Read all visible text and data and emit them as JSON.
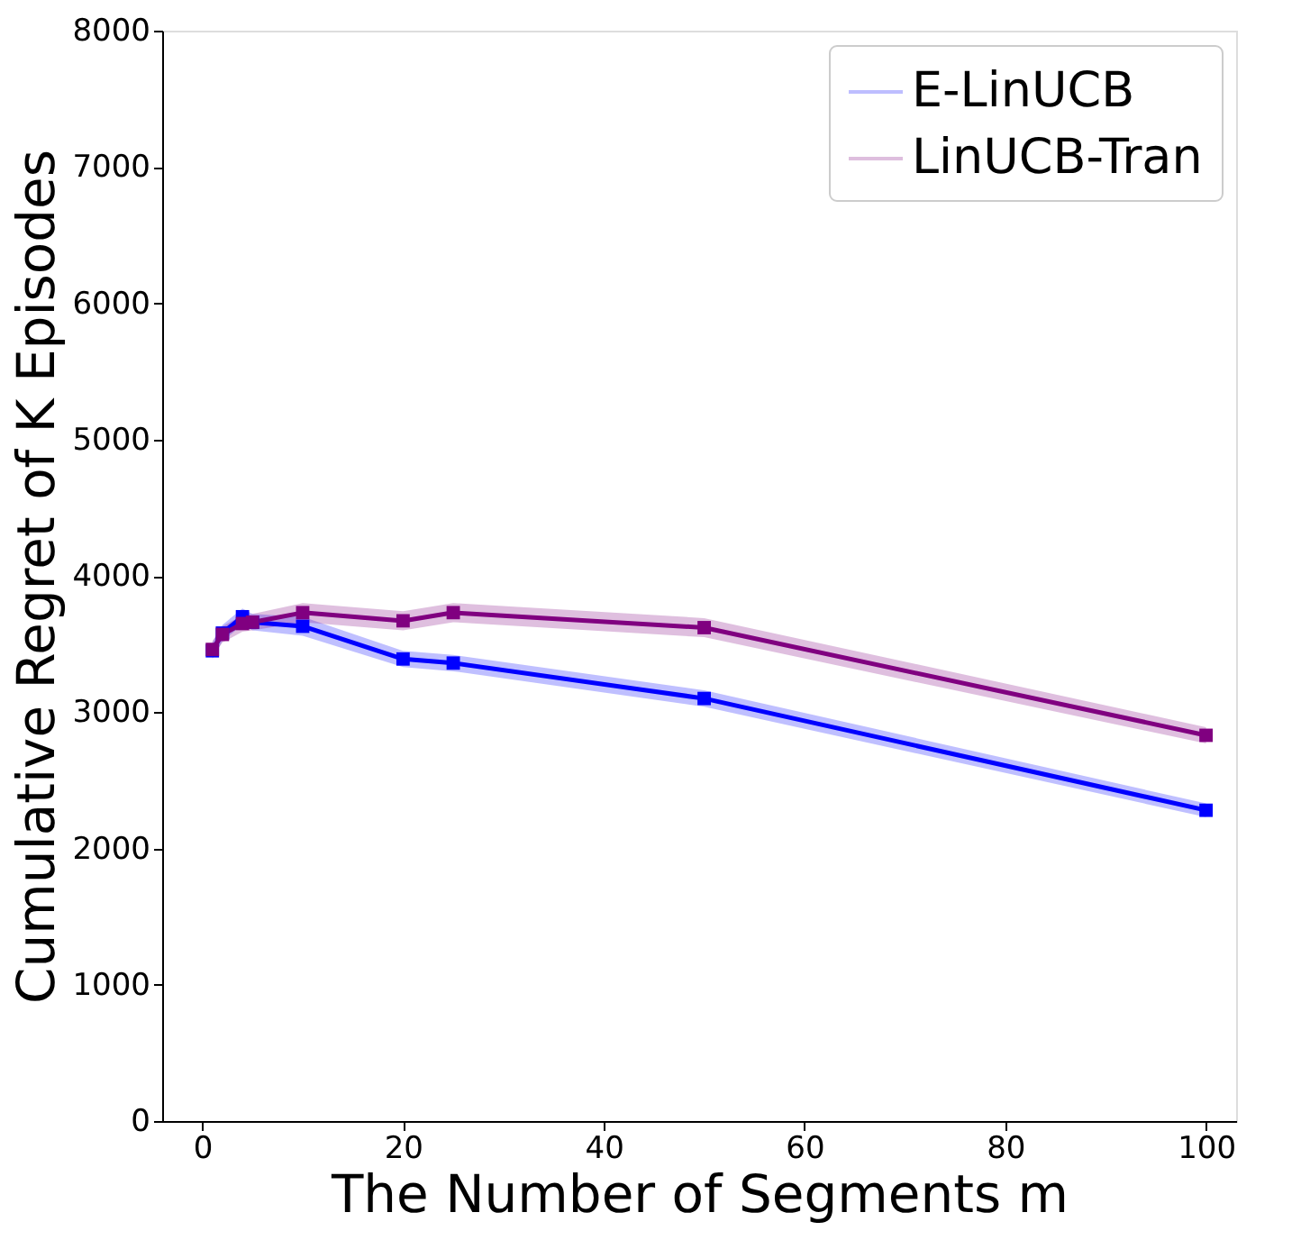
{
  "chart_data": {
    "type": "line",
    "xlabel": "The Number of Segments m",
    "ylabel": "Cumulative Regret of K Episodes",
    "xlim": [
      -4,
      103
    ],
    "xticks": [
      0,
      20,
      40,
      60,
      80,
      100
    ],
    "ylim": [
      0,
      8000
    ],
    "yticks": [
      0,
      1000,
      2000,
      3000,
      4000,
      5000,
      6000,
      7000,
      8000
    ],
    "grid": false,
    "legend": "top right",
    "marker": "square",
    "line_style": "solid",
    "x": [
      1,
      2,
      4,
      5,
      10,
      20,
      25,
      50,
      100
    ],
    "series": [
      {
        "name": "E-LinUCB",
        "color": "#0000ff",
        "values": [
          3450,
          3580,
          3700,
          3660,
          3630,
          3390,
          3360,
          3100,
          2280
        ],
        "lower": [
          3390,
          3520,
          3640,
          3600,
          3560,
          3330,
          3300,
          3040,
          2230
        ],
        "upper": [
          3510,
          3640,
          3760,
          3720,
          3700,
          3450,
          3420,
          3160,
          2330
        ]
      },
      {
        "name": "LinUCB-Tran",
        "color": "#800080",
        "values": [
          3460,
          3570,
          3650,
          3660,
          3730,
          3670,
          3730,
          3620,
          2830
        ],
        "lower": [
          3400,
          3510,
          3590,
          3600,
          3660,
          3600,
          3660,
          3550,
          2770
        ],
        "upper": [
          3520,
          3630,
          3710,
          3720,
          3800,
          3740,
          3800,
          3690,
          2890
        ]
      }
    ]
  }
}
